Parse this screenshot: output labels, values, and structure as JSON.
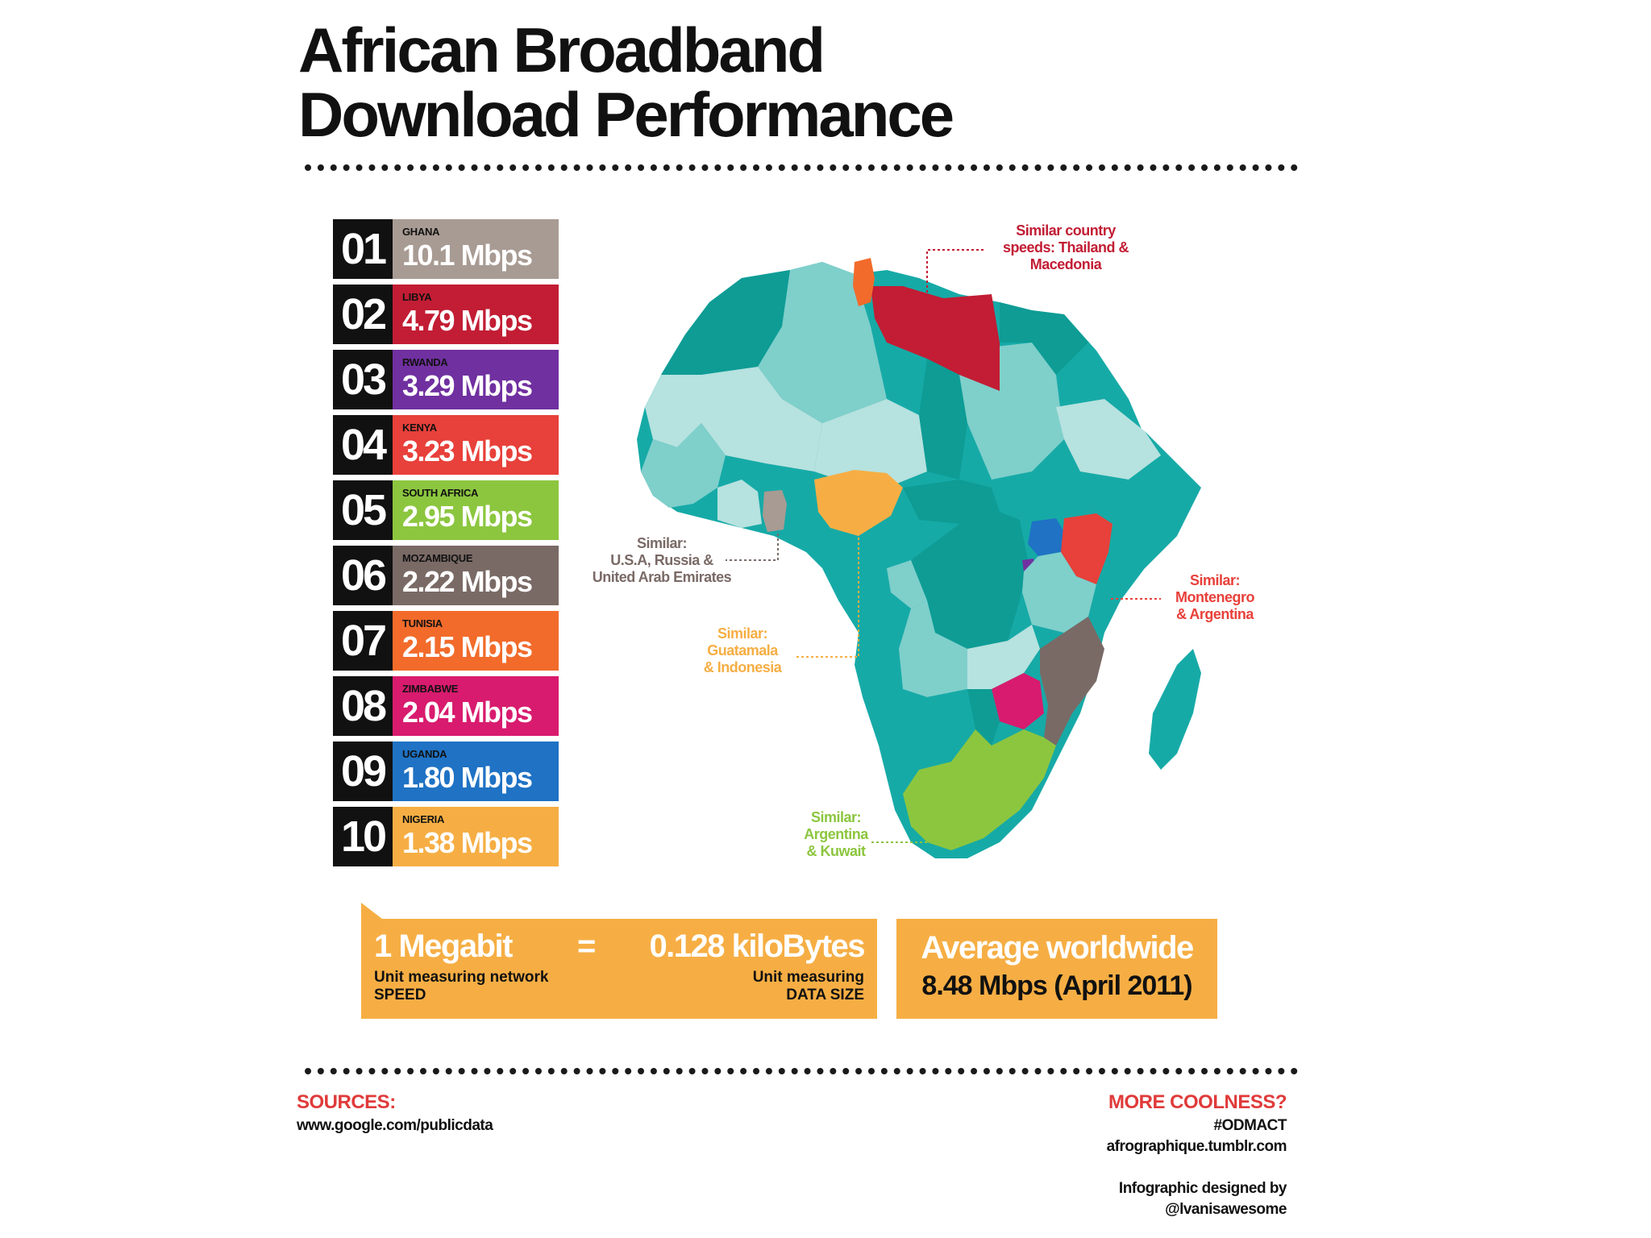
{
  "title": {
    "line1": "African Broadband",
    "line2": "Download Performance"
  },
  "chart_data": {
    "type": "table",
    "title": "African Broadband Download Performance",
    "unit": "Mbps",
    "rankings": [
      {
        "rank": "01",
        "country": "GHANA",
        "speed": "10.1 Mbps",
        "value": 10.1,
        "color": "#a89b93"
      },
      {
        "rank": "02",
        "country": "LIBYA",
        "speed": "4.79 Mbps",
        "value": 4.79,
        "color": "#c21d34"
      },
      {
        "rank": "03",
        "country": "RWANDA",
        "speed": "3.29 Mbps",
        "value": 3.29,
        "color": "#7030a0"
      },
      {
        "rank": "04",
        "country": "KENYA",
        "speed": "3.23 Mbps",
        "value": 3.23,
        "color": "#e8403a"
      },
      {
        "rank": "05",
        "country": "SOUTH AFRICA",
        "speed": "2.95 Mbps",
        "value": 2.95,
        "color": "#8cc63f"
      },
      {
        "rank": "06",
        "country": "MOZAMBIQUE",
        "speed": "2.22 Mbps",
        "value": 2.22,
        "color": "#7a6a66"
      },
      {
        "rank": "07",
        "country": "TUNISIA",
        "speed": "2.15 Mbps",
        "value": 2.15,
        "color": "#f26b2b"
      },
      {
        "rank": "08",
        "country": "ZIMBABWE",
        "speed": "2.04 Mbps",
        "value": 2.04,
        "color": "#d81b6e"
      },
      {
        "rank": "09",
        "country": "UGANDA",
        "speed": "1.80 Mbps",
        "value": 1.8,
        "color": "#1f72c4"
      },
      {
        "rank": "10",
        "country": "NIGERIA",
        "speed": "1.38 Mbps",
        "value": 1.38,
        "color": "#f6ae44"
      }
    ],
    "callouts": [
      {
        "id": "libya",
        "text": [
          "Similar country",
          "speeds: Thailand &",
          "Macedonia"
        ],
        "color": "#c21d34"
      },
      {
        "id": "ghana",
        "text": [
          "Similar:",
          "U.S.A, Russia &",
          "United Arab Emirates"
        ],
        "color": "#7a6a66"
      },
      {
        "id": "kenya",
        "text": [
          "Similar:",
          "Montenegro",
          "& Argentina"
        ],
        "color": "#e8403a"
      },
      {
        "id": "nigeria",
        "text": [
          "Similar:",
          "Guatamala",
          "& Indonesia"
        ],
        "color": "#f6ae44"
      },
      {
        "id": "southafrica",
        "text": [
          "Similar:",
          "Argentina",
          "& Kuwait"
        ],
        "color": "#8cc63f"
      }
    ]
  },
  "conversion": {
    "left_value": "1 Megabit",
    "left_desc": [
      "Unit measuring network",
      "SPEED"
    ],
    "equals": "=",
    "right_value": "0.128 kiloBytes",
    "right_desc": [
      "Unit measuring",
      "DATA SIZE"
    ]
  },
  "average": {
    "label": "Average worldwide",
    "value": "8.48 Mbps (April 2011)"
  },
  "sources": {
    "title": "SOURCES:",
    "url": "www.google.com/publicdata"
  },
  "more": {
    "title": "MORE COOLNESS?",
    "hashtag": "#ODMACT",
    "site": "afrographique.tumblr.com",
    "credit1": "Infographic designed by",
    "credit2": "@lvanisawesome"
  },
  "map_colors": {
    "teal": "#16aaa7",
    "teal_dark": "#0e9c95",
    "teal_light": "#7fcfcb",
    "teal_pale": "#b6e2df"
  }
}
